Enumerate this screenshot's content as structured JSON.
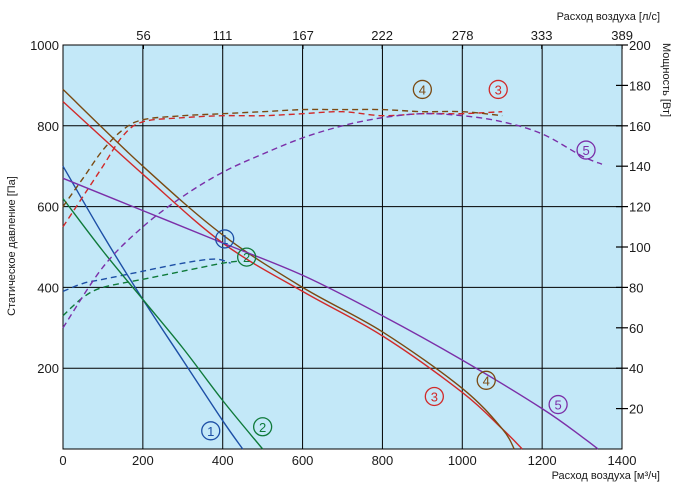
{
  "chart_data": {
    "type": "line",
    "xlabel_bottom": "Расход воздуха [м³/ч]",
    "xlabel_top": "Расход воздуха [л/с]",
    "ylabel_left": "Статическое давление [Па]",
    "ylabel_right": "Мощность [Вт]",
    "xlim": [
      0,
      1400
    ],
    "ylim_left": [
      0,
      1000
    ],
    "ylim_right": [
      0,
      200
    ],
    "x_ticks": [
      "0",
      "200",
      "400",
      "600",
      "800",
      "1000",
      "1200",
      "1400"
    ],
    "x_top_ticks": [
      "56",
      "111",
      "167",
      "222",
      "278",
      "333",
      "389"
    ],
    "y_left_ticks": [
      "200",
      "400",
      "600",
      "800",
      "1000"
    ],
    "y_right_ticks": [
      "20",
      "40",
      "60",
      "80",
      "100",
      "120",
      "140",
      "160",
      "180",
      "200"
    ],
    "grid": true,
    "background": "#c3e8f8",
    "series": [
      {
        "name": "1",
        "color": "#1d4fa6",
        "pressure": {
          "x": [
            0,
            100,
            200,
            300,
            400,
            450
          ],
          "y": [
            700,
            530,
            370,
            220,
            70,
            0
          ]
        },
        "power": {
          "x": [
            0,
            50,
            100,
            200,
            300,
            380,
            420
          ],
          "y": [
            78,
            82,
            84,
            88,
            92,
            94,
            92
          ]
        }
      },
      {
        "name": "2",
        "color": "#0f7a3a",
        "pressure": {
          "x": [
            0,
            100,
            200,
            300,
            400,
            500
          ],
          "y": [
            620,
            490,
            370,
            250,
            120,
            0
          ]
        },
        "power": {
          "x": [
            0,
            50,
            100,
            200,
            300,
            400,
            440
          ],
          "y": [
            66,
            75,
            80,
            84,
            88,
            92,
            93
          ]
        }
      },
      {
        "name": "3",
        "color": "#d12a2a",
        "pressure": {
          "x": [
            0,
            200,
            400,
            600,
            800,
            1000,
            1100,
            1150
          ],
          "y": [
            860,
            680,
            510,
            390,
            280,
            140,
            50,
            0
          ]
        },
        "power": {
          "x": [
            0,
            50,
            100,
            150,
            200,
            300,
            400,
            500,
            600,
            700,
            800,
            900,
            1000,
            1100
          ],
          "y": [
            110,
            125,
            140,
            155,
            162,
            164,
            165,
            165,
            166,
            167,
            165,
            166,
            166,
            167
          ]
        }
      },
      {
        "name": "4",
        "color": "#7a4a12",
        "pressure": {
          "x": [
            0,
            200,
            400,
            600,
            800,
            1000,
            1100,
            1130
          ],
          "y": [
            890,
            700,
            530,
            400,
            290,
            150,
            50,
            0
          ]
        },
        "power": {
          "x": [
            0,
            50,
            100,
            150,
            200,
            300,
            400,
            500,
            600,
            700,
            800,
            900,
            1000,
            1100
          ],
          "y": [
            120,
            134,
            148,
            158,
            163,
            165,
            166,
            167,
            168,
            168,
            168,
            167,
            167,
            165
          ]
        }
      },
      {
        "name": "5",
        "color": "#7b2fa8",
        "pressure": {
          "x": [
            0,
            200,
            400,
            600,
            800,
            1000,
            1200,
            1300,
            1340
          ],
          "y": [
            670,
            590,
            510,
            430,
            330,
            220,
            100,
            30,
            0
          ]
        },
        "power": {
          "x": [
            0,
            100,
            200,
            300,
            400,
            500,
            600,
            700,
            800,
            900,
            1000,
            1100,
            1200,
            1300,
            1350
          ],
          "y": [
            60,
            90,
            110,
            125,
            137,
            146,
            154,
            160,
            164,
            166,
            165,
            162,
            156,
            145,
            141
          ]
        }
      }
    ]
  }
}
